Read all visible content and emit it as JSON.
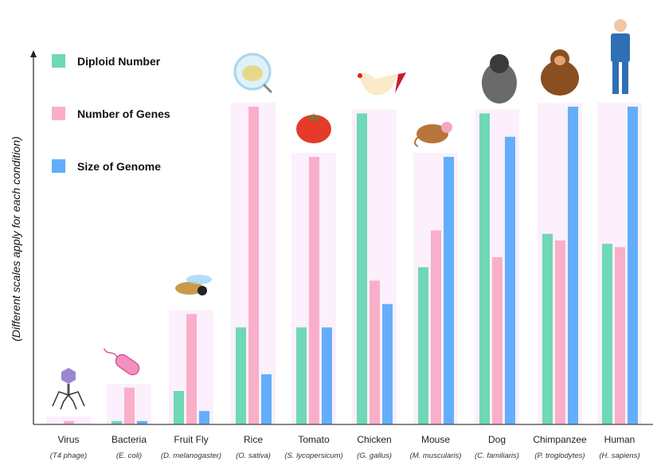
{
  "chart_data": {
    "type": "bar",
    "title": "",
    "xlabel": "",
    "ylabel": "(Different scales apply for each condition)",
    "ylim": [
      0,
      100
    ],
    "grid": false,
    "legend_position": "top-left",
    "categories": [
      "Virus",
      "Bacteria",
      "Fruit Fly",
      "Rice",
      "Tomato",
      "Chicken",
      "Mouse",
      "Dog",
      "Chimpanzee",
      "Human"
    ],
    "scientific_names": [
      "(T4 phage)",
      "(E. coli)",
      "(D. melanogaster)",
      "(O. sativa)",
      "(S. lycopersicum)",
      "(G. gallus)",
      "(M. muscularis)",
      "(C. familiaris)",
      "(P. troglodytes)",
      "(H. sapiens)"
    ],
    "series": [
      {
        "name": "Diploid Number",
        "color": "#6fd8b5",
        "values": [
          0,
          1,
          10,
          29,
          29,
          93,
          47,
          93,
          57,
          54
        ]
      },
      {
        "name": "Number of Genes",
        "color": "#f9afc9",
        "values": [
          1,
          11,
          33,
          95,
          80,
          43,
          58,
          50,
          55,
          53
        ]
      },
      {
        "name": "Size of Genome",
        "color": "#63aefc",
        "values": [
          0,
          1,
          4,
          15,
          29,
          36,
          80,
          86,
          95,
          95
        ]
      }
    ],
    "panel_color": "#fbf0fb"
  }
}
